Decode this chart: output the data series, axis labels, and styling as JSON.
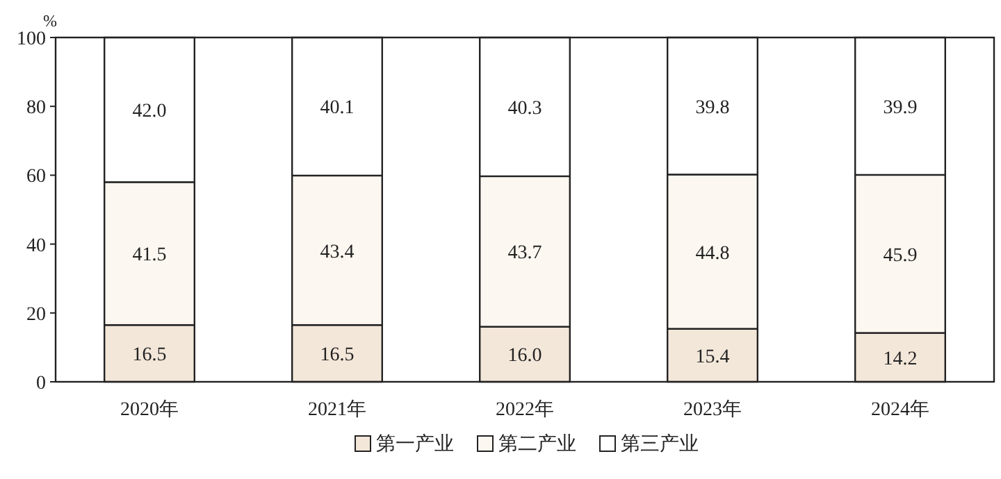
{
  "chart_data": {
    "type": "bar",
    "stacked": true,
    "ylabel": "%",
    "categories": [
      "2020年",
      "2021年",
      "2022年",
      "2023年",
      "2024年"
    ],
    "series": [
      {
        "name": "第一产业",
        "color": "#f3e7da",
        "values": [
          16.5,
          16.5,
          16.0,
          15.4,
          14.2
        ],
        "value_labels": [
          "16.5",
          "16.5",
          "16.0",
          "15.4",
          "14.2"
        ]
      },
      {
        "name": "第二产业",
        "color": "#fcf7f0",
        "values": [
          41.5,
          43.4,
          43.7,
          44.8,
          45.9
        ],
        "value_labels": [
          "41.5",
          "43.4",
          "43.7",
          "44.8",
          "45.9"
        ]
      },
      {
        "name": "第三产业",
        "color": "#ffffff",
        "values": [
          42.0,
          40.1,
          40.3,
          39.8,
          39.9
        ],
        "value_labels": [
          "42.0",
          "40.1",
          "40.3",
          "39.8",
          "39.9"
        ]
      }
    ],
    "ylim": [
      0,
      100
    ],
    "yticks": [
      0,
      20,
      40,
      60,
      80,
      100
    ],
    "legend": "bottom"
  }
}
